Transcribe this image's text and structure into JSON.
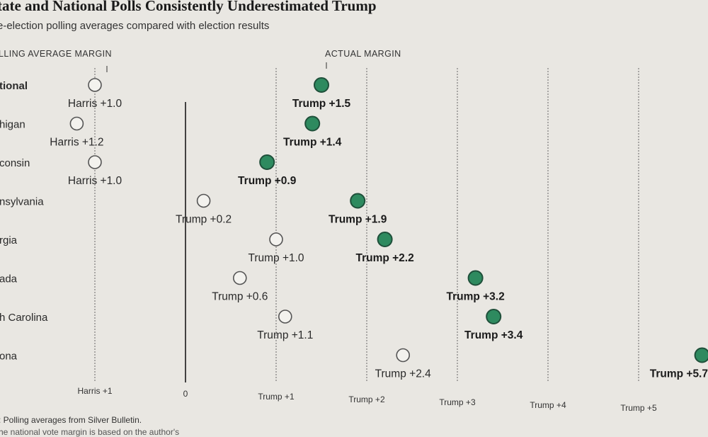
{
  "header": {
    "title": "tate and National Polls Consistently Underestimated Trump",
    "subtitle": "e-election polling averages compared with election results",
    "left_col_label": "LLING AVERAGE MARGIN",
    "right_col_label": "ACTUAL MARGIN"
  },
  "footer": {
    "source": ": Polling averages from Silver Bulletin.",
    "note": "he national vote margin is based on the author's"
  },
  "colors": {
    "background": "#e9e7e2",
    "bar": "#3d8a6b",
    "bar_light": "#6a9b87",
    "dot_fill": "#2e8a5f",
    "dot_stroke": "#1f4f3a",
    "open_dot_fill": "#f3f2ee"
  },
  "chart_data": {
    "type": "dumbbell",
    "title": "tate and National Polls Consistently Underestimated Trump",
    "subtitle": "e-election polling averages compared with election results",
    "xlabel": "",
    "xlim": [
      -1,
      5.7
    ],
    "value_convention": "positive = Trump margin, negative = Harris margin",
    "ticks": [
      {
        "value": -1,
        "label": "Harris +1"
      },
      {
        "value": 0,
        "label": "0"
      },
      {
        "value": 1,
        "label": "Trump +1"
      },
      {
        "value": 2,
        "label": "Trump +2"
      },
      {
        "value": 3,
        "label": "Trump +3"
      },
      {
        "value": 4,
        "label": "Trump +4"
      },
      {
        "value": 5,
        "label": "Trump +5"
      }
    ],
    "series": [
      {
        "name": "Polling average margin",
        "marker": "open circle"
      },
      {
        "name": "Actual margin",
        "marker": "filled circle"
      }
    ],
    "rows": [
      {
        "label": "tional",
        "bold": true,
        "poll": -1.0,
        "poll_label": "Harris +1.0",
        "actual": 1.5,
        "actual_label": "Trump +1.5"
      },
      {
        "label": "higan",
        "bold": false,
        "poll": -1.2,
        "poll_label": "Harris +1.2",
        "actual": 1.4,
        "actual_label": "Trump +1.4"
      },
      {
        "label": "consin",
        "bold": false,
        "poll": -1.0,
        "poll_label": "Harris +1.0",
        "actual": 0.9,
        "actual_label": "Trump +0.9"
      },
      {
        "label": "nsylvania",
        "bold": false,
        "poll": 0.2,
        "poll_label": "Trump +0.2",
        "actual": 1.9,
        "actual_label": "Trump +1.9"
      },
      {
        "label": "rgia",
        "bold": false,
        "poll": 1.0,
        "poll_label": "Trump +1.0",
        "actual": 2.2,
        "actual_label": "Trump +2.2"
      },
      {
        "label": "ada",
        "bold": false,
        "poll": 0.6,
        "poll_label": "Trump +0.6",
        "actual": 3.2,
        "actual_label": "Trump +3.2"
      },
      {
        "label": "h Carolina",
        "bold": false,
        "poll": 1.1,
        "poll_label": "Trump +1.1",
        "actual": 3.4,
        "actual_label": "Trump +3.4"
      },
      {
        "label": "ona",
        "bold": false,
        "poll": 2.4,
        "poll_label": "Trump +2.4",
        "actual": 5.7,
        "actual_label": "Trump +5.7"
      }
    ]
  }
}
